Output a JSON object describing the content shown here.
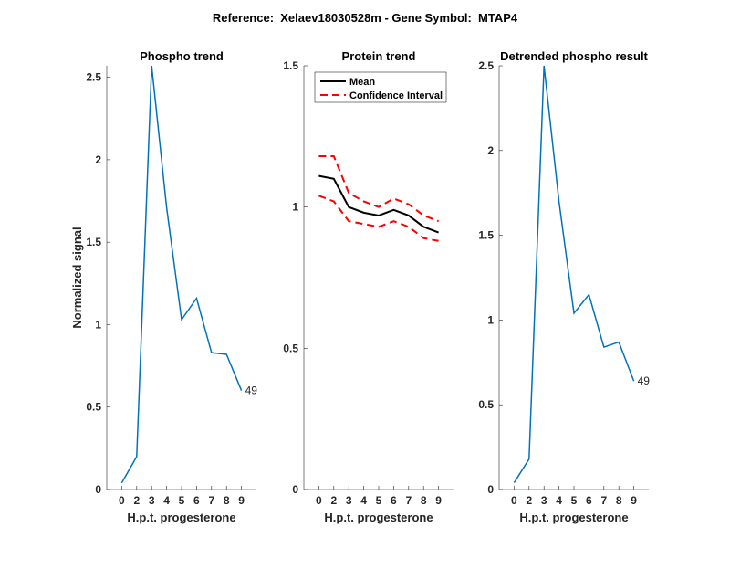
{
  "figure_title": "Reference:  Xelaev18030528m - Gene Symbol:  MTAP4",
  "chart_data": [
    {
      "type": "line",
      "title": "Phospho trend",
      "xlabel": "H.p.t. progesterone",
      "ylabel": "Normalized signal",
      "categories": [
        "0",
        "2",
        "3",
        "4",
        "5",
        "6",
        "7",
        "8",
        "9"
      ],
      "ylim": [
        0,
        2.57
      ],
      "yticks": [
        0,
        0.5,
        1,
        1.5,
        2,
        2.5
      ],
      "ytick_labels": [
        "0",
        "0.5",
        "1",
        "1.5",
        "2",
        "2.5"
      ],
      "series": [
        {
          "name": "phospho",
          "color": "#0072BD",
          "values": [
            0.04,
            0.2,
            2.57,
            1.71,
            1.03,
            1.16,
            0.83,
            0.82,
            0.6
          ]
        }
      ],
      "annotation": "49"
    },
    {
      "type": "line",
      "title": "Protein trend",
      "xlabel": "H.p.t. progesterone",
      "ylabel": "",
      "categories": [
        "0",
        "2",
        "3",
        "4",
        "5",
        "6",
        "7",
        "8",
        "9"
      ],
      "ylim": [
        0,
        1.5
      ],
      "yticks": [
        0,
        0.5,
        1,
        1.5
      ],
      "ytick_labels": [
        "0",
        "0.5",
        "1",
        "1.5"
      ],
      "legend_position": "top-left",
      "series": [
        {
          "name": "Mean",
          "color": "#000000",
          "dashed": false,
          "values": [
            1.11,
            1.1,
            1.0,
            0.98,
            0.97,
            0.99,
            0.97,
            0.93,
            0.91
          ]
        },
        {
          "name": "Confidence Interval",
          "color": "#FF0000",
          "dashed": true,
          "values": [
            1.18,
            1.18,
            1.05,
            1.02,
            1.0,
            1.03,
            1.01,
            0.97,
            0.95
          ]
        },
        {
          "name": "Confidence Interval (lower)",
          "color": "#FF0000",
          "dashed": true,
          "legend": false,
          "values": [
            1.04,
            1.02,
            0.95,
            0.94,
            0.93,
            0.95,
            0.93,
            0.89,
            0.88
          ]
        }
      ]
    },
    {
      "type": "line",
      "title": "Detrended phospho result",
      "xlabel": "H.p.t. progesterone",
      "ylabel": "",
      "categories": [
        "0",
        "2",
        "3",
        "4",
        "5",
        "6",
        "7",
        "8",
        "9"
      ],
      "ylim": [
        0,
        2.5
      ],
      "yticks": [
        0,
        0.5,
        1,
        1.5,
        2,
        2.5
      ],
      "ytick_labels": [
        "0",
        "0.5",
        "1",
        "1.5",
        "2",
        "2.5"
      ],
      "series": [
        {
          "name": "detrended",
          "color": "#0072BD",
          "values": [
            0.04,
            0.18,
            2.5,
            1.7,
            1.04,
            1.15,
            0.84,
            0.87,
            0.64
          ]
        }
      ],
      "annotation": "49"
    }
  ]
}
